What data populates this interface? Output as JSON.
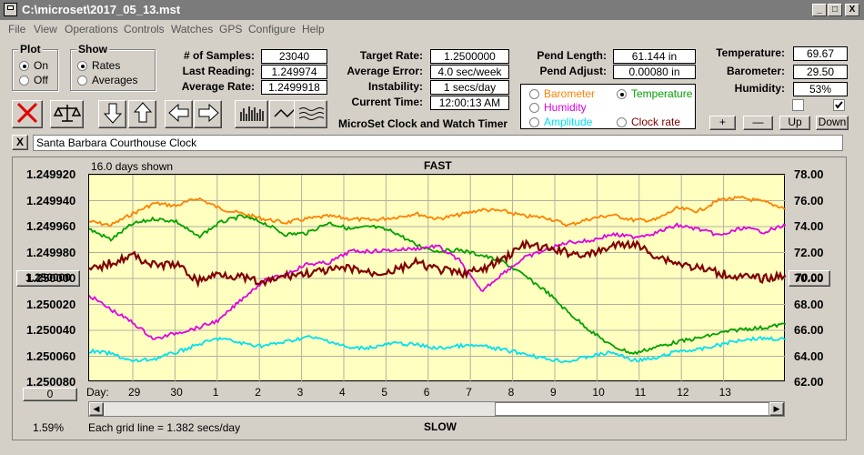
{
  "window": {
    "title": "C:\\microset\\2017_05_13.mst",
    "min": "_",
    "max": "□",
    "close": "X"
  },
  "menu": [
    "File",
    "View",
    "Operations",
    "Controls",
    "Watches",
    "GPS",
    "Configure",
    "Help"
  ],
  "plot_group": {
    "title": "Plot",
    "on": "On",
    "off": "Off",
    "selected": "On"
  },
  "show_group": {
    "title": "Show",
    "rates": "Rates",
    "averages": "Averages",
    "selected": "Rates"
  },
  "stats": {
    "samples_label": "# of Samples:",
    "samples": "23040",
    "last_label": "Last Reading:",
    "last": "1.249974",
    "avg_label": "Average Rate:",
    "avg": "1.2499918",
    "target_label": "Target Rate:",
    "target": "1.2500000",
    "avgerr_label": "Average Error:",
    "avgerr": "4.0 sec/week",
    "instab_label": "Instability:",
    "instab": "1 secs/day",
    "time_label": "Current Time:",
    "time": "12:00:13 AM",
    "pendlen_label": "Pend Length:",
    "pendlen": "61.144 in",
    "pendadj_label": "Pend Adjust:",
    "pendadj": "0.00080 in",
    "temp_label": "Temperature:",
    "temp": "69.67",
    "baro_label": "Barometer:",
    "baro": "29.50",
    "hum_label": "Humidity:",
    "hum": "53%"
  },
  "app_title": "MicroSet Clock and Watch Timer",
  "series_select": {
    "barometer": {
      "label": "Barometer",
      "color": "#ff8000"
    },
    "temperature": {
      "label": "Temperature",
      "color": "#00a000",
      "selected": true
    },
    "humidity": {
      "label": "Humidity",
      "color": "#e000e0"
    },
    "amplitude": {
      "label": "Amplitude",
      "color": "#00e0f0"
    },
    "clockrate": {
      "label": "Clock rate",
      "color": "#800000"
    }
  },
  "adjust_buttons": [
    "+",
    "—",
    "Up",
    "Down"
  ],
  "clock_name": "Santa Barbara Courthouse Clock",
  "close_x": "X",
  "chart_header": {
    "days_shown": "16.0 days shown",
    "fast": "FAST",
    "slow": "SLOW",
    "grid_note": "Each grid line = 1.382 secs/day",
    "pct": "1.59%",
    "center_btn": "1.250000",
    "right_btn": "70.00",
    "zero_btn": "0",
    "day_label": "Day:"
  },
  "chart_data": {
    "type": "line",
    "x_tick_labels": [
      "29",
      "30",
      "1",
      "2",
      "3",
      "4",
      "5",
      "6",
      "7",
      "8",
      "9",
      "10",
      "11",
      "12",
      "13"
    ],
    "y_left_ticks": [
      "1.249920",
      "1.249940",
      "1.249960",
      "1.249980",
      "1.250000",
      "1.250020",
      "1.250040",
      "1.250060",
      "1.250080"
    ],
    "y_right_ticks": [
      "78.00",
      "76.00",
      "74.00",
      "72.00",
      "70.00",
      "68.00",
      "66.00",
      "64.00",
      "62.00"
    ],
    "x_range": [
      0,
      16
    ],
    "y_left_range": [
      1.24992,
      1.25008
    ],
    "y_right_range": [
      62,
      78
    ],
    "series": [
      {
        "name": "Barometer",
        "color": "#ff8000",
        "scale": "right",
        "x": [
          0,
          0.5,
          1,
          1.5,
          2,
          2.5,
          3,
          3.5,
          4,
          4.5,
          5,
          5.5,
          6,
          6.5,
          7,
          7.5,
          8,
          8.5,
          9,
          9.5,
          10,
          10.5,
          11,
          11.5,
          12,
          12.5,
          13,
          13.5,
          14,
          14.5,
          15,
          15.5,
          16
        ],
        "y": [
          74.4,
          74.1,
          75,
          75.8,
          75.6,
          76.2,
          75.4,
          75,
          74.6,
          74.3,
          74.6,
          74.8,
          74.6,
          74.5,
          74.7,
          75,
          74.6,
          74.9,
          75.3,
          75.2,
          74.8,
          74.7,
          74.1,
          74.6,
          74.9,
          74.5,
          74.5,
          75.4,
          75.2,
          76.1,
          76.2,
          75.9,
          75.4
        ]
      },
      {
        "name": "Temperature",
        "color": "#00a000",
        "scale": "right",
        "x": [
          0,
          0.5,
          1,
          1.5,
          2,
          2.5,
          3,
          3.5,
          4,
          4.5,
          5,
          5.5,
          6,
          6.5,
          7,
          7.5,
          8,
          8.5,
          9,
          9.5,
          10,
          10.5,
          11,
          11.5,
          12,
          12.5,
          13,
          13.5,
          14,
          14.5,
          15,
          15.5,
          16
        ],
        "y": [
          73.8,
          73,
          74.2,
          74.6,
          74.4,
          73.2,
          74.3,
          74.8,
          74.3,
          73.4,
          73.5,
          74.3,
          73.8,
          74,
          73.6,
          72.6,
          72.1,
          72.2,
          71.8,
          71.3,
          70.2,
          69,
          67.4,
          66,
          64.8,
          64.2,
          64.7,
          65.1,
          65.4,
          65.8,
          66.1,
          66.2,
          66.5
        ]
      },
      {
        "name": "Humidity",
        "color": "#e000e0",
        "scale": "right",
        "x": [
          0,
          0.5,
          1,
          1.5,
          2,
          2.5,
          3,
          3.5,
          4,
          4.5,
          5,
          5.5,
          6,
          6.5,
          7,
          7.5,
          8,
          8.5,
          9,
          9.5,
          10,
          10.5,
          11,
          11.5,
          12,
          12.5,
          13,
          13.5,
          14,
          14.5,
          15,
          15.5,
          16
        ],
        "y": [
          68.7,
          67.6,
          66.6,
          65.3,
          65.8,
          66.2,
          66.8,
          68.4,
          69.8,
          70.3,
          71.1,
          71.2,
          72.1,
          72.1,
          72.2,
          72.3,
          72.5,
          71.4,
          69,
          70.4,
          71.6,
          72.2,
          72.8,
          72.9,
          73.4,
          73.2,
          73.5,
          74.1,
          73.8,
          73.3,
          73.9,
          73.6,
          74.1
        ]
      },
      {
        "name": "Amplitude",
        "color": "#00e0f0",
        "scale": "right",
        "x": [
          0,
          0.5,
          1,
          1.5,
          2,
          2.5,
          3,
          3.5,
          4,
          4.5,
          5,
          5.5,
          6,
          6.5,
          7,
          7.5,
          8,
          8.5,
          9,
          9.5,
          10,
          10.5,
          11,
          11.5,
          12,
          12.5,
          13,
          13.5,
          14,
          14.5,
          15,
          15.5,
          16
        ],
        "y": [
          64.4,
          64.2,
          63.6,
          63.8,
          64.3,
          64.9,
          65.4,
          65,
          64.8,
          65.1,
          65.5,
          65.2,
          64.6,
          64.7,
          65,
          64.9,
          64.6,
          64.8,
          64.8,
          64.5,
          64.2,
          63.8,
          63.6,
          64,
          64.3,
          63.7,
          63.8,
          64.4,
          64.5,
          64.9,
          65.3,
          65.4,
          65.3
        ]
      },
      {
        "name": "Clock rate",
        "color": "#800000",
        "scale": "left",
        "x": [
          0,
          0.5,
          1,
          1.5,
          2,
          2.5,
          3,
          3.5,
          4,
          4.5,
          5,
          5.5,
          6,
          6.5,
          7,
          7.5,
          8,
          8.5,
          9,
          9.5,
          10,
          10.5,
          11,
          11.5,
          12,
          12.5,
          13,
          13.5,
          14,
          14.5,
          15,
          15.5,
          16
        ],
        "y": [
          1.249994,
          1.249988,
          1.249982,
          1.24999,
          1.249989,
          1.250002,
          1.249996,
          1.249999,
          1.250004,
          1.249998,
          1.249996,
          1.249994,
          1.249992,
          1.249996,
          1.249994,
          1.249988,
          1.249993,
          1.249996,
          1.249994,
          1.249985,
          1.249974,
          1.249977,
          1.24998,
          1.249982,
          1.249975,
          1.249973,
          1.249982,
          1.249988,
          1.249992,
          1.249996,
          1.249999,
          1.25,
          1.249998
        ]
      }
    ],
    "x2": [
      13.5,
      14,
      14.5,
      15,
      15.5,
      16
    ],
    "note": ""
  }
}
